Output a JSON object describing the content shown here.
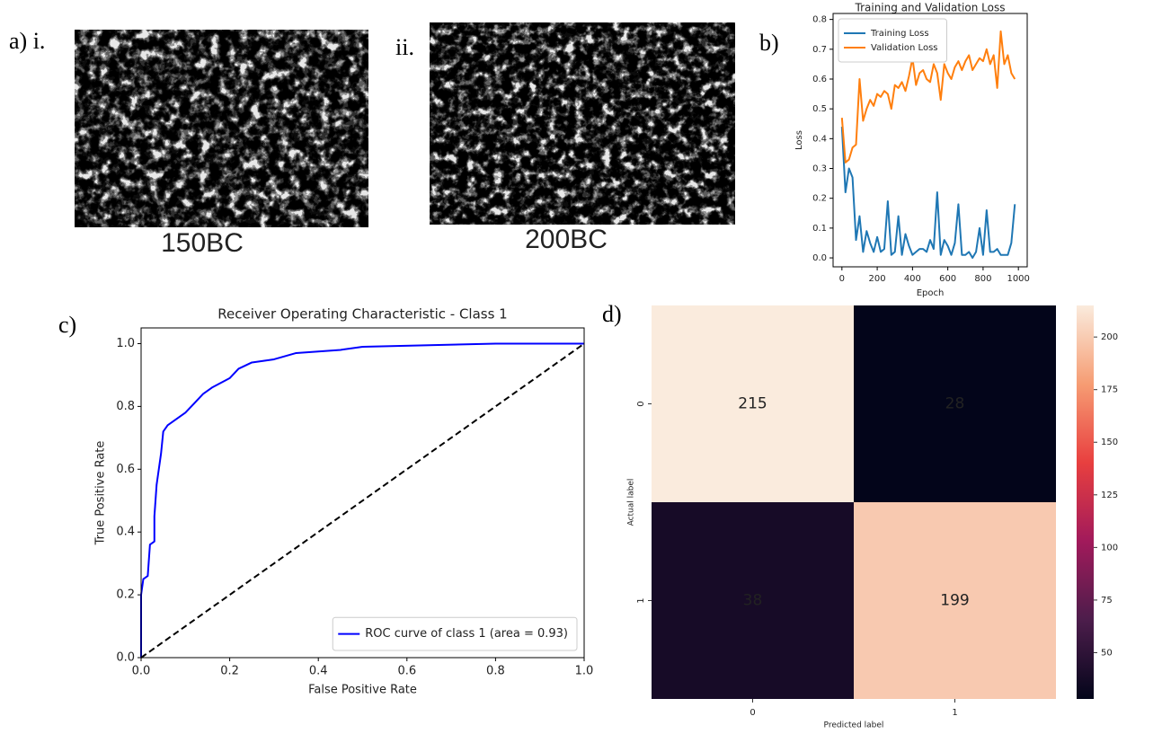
{
  "figure": {
    "panels": [
      {
        "label": "a) i.",
        "caption": "150BC"
      },
      {
        "label": "ii.",
        "caption": "200BC"
      }
    ]
  },
  "chart_data": [
    {
      "type": "line",
      "panel_label": "b)",
      "title": "Training and Validation Loss",
      "xlabel": "Epoch",
      "ylabel": "Loss",
      "x": [
        0,
        20,
        40,
        60,
        80,
        100,
        120,
        140,
        160,
        180,
        200,
        220,
        240,
        260,
        280,
        300,
        320,
        340,
        360,
        380,
        400,
        420,
        440,
        460,
        480,
        500,
        520,
        540,
        560,
        580,
        600,
        620,
        640,
        660,
        680,
        700,
        720,
        740,
        760,
        780,
        800,
        820,
        840,
        860,
        880,
        900,
        920,
        940,
        960,
        980
      ],
      "series": [
        {
          "name": "Training Loss",
          "color": "#1f77b4",
          "values": [
            0.44,
            0.22,
            0.3,
            0.27,
            0.06,
            0.14,
            0.02,
            0.09,
            0.05,
            0.02,
            0.07,
            0.02,
            0.03,
            0.19,
            0.01,
            0.02,
            0.14,
            0.01,
            0.08,
            0.04,
            0.01,
            0.02,
            0.03,
            0.03,
            0.02,
            0.06,
            0.03,
            0.22,
            0.01,
            0.06,
            0.04,
            0.01,
            0.05,
            0.18,
            0.01,
            0.01,
            0.02,
            0.0,
            0.02,
            0.1,
            0.01,
            0.16,
            0.02,
            0.02,
            0.03,
            0.01,
            0.01,
            0.01,
            0.05,
            0.18
          ]
        },
        {
          "name": "Validation Loss",
          "color": "#ff7f0e",
          "values": [
            0.47,
            0.32,
            0.33,
            0.37,
            0.38,
            0.6,
            0.46,
            0.5,
            0.53,
            0.51,
            0.55,
            0.54,
            0.56,
            0.55,
            0.5,
            0.58,
            0.57,
            0.59,
            0.56,
            0.61,
            0.67,
            0.58,
            0.62,
            0.63,
            0.6,
            0.59,
            0.65,
            0.62,
            0.53,
            0.65,
            0.62,
            0.6,
            0.64,
            0.66,
            0.63,
            0.66,
            0.68,
            0.63,
            0.65,
            0.67,
            0.66,
            0.7,
            0.65,
            0.68,
            0.57,
            0.76,
            0.65,
            0.68,
            0.62,
            0.6
          ]
        }
      ],
      "xlim": [
        -50,
        1050
      ],
      "xticks": [
        0,
        200,
        400,
        600,
        800,
        1000
      ],
      "ylim": [
        -0.03,
        0.82
      ],
      "yticks": [
        {
          "value": 0,
          "label": "0.0"
        },
        0.1,
        0.2,
        0.3,
        0.4,
        0.5,
        0.6,
        0.7,
        0.8
      ],
      "legend": "upper left"
    },
    {
      "type": "line",
      "panel_label": "c)",
      "title": "Receiver Operating Characteristic - Class 1",
      "xlabel": "False Positive Rate",
      "ylabel": "True Positive Rate",
      "series": [
        {
          "name": "ROC curve of class 1 (area = 0.93)",
          "color": "#0000ff",
          "x": [
            0,
            0,
            0.005,
            0.015,
            0.02,
            0.03,
            0.03,
            0.035,
            0.04,
            0.045,
            0.05,
            0.06,
            0.08,
            0.1,
            0.12,
            0.14,
            0.16,
            0.2,
            0.22,
            0.25,
            0.3,
            0.35,
            0.45,
            0.5,
            0.65,
            0.8,
            1
          ],
          "values": [
            0,
            0.2,
            0.25,
            0.26,
            0.36,
            0.37,
            0.45,
            0.55,
            0.6,
            0.65,
            0.72,
            0.74,
            0.76,
            0.78,
            0.81,
            0.84,
            0.86,
            0.89,
            0.92,
            0.94,
            0.95,
            0.97,
            0.98,
            0.99,
            0.995,
            1,
            1
          ]
        },
        {
          "color": "#000000",
          "dash": true,
          "x": [
            0,
            1
          ],
          "values": [
            0,
            1
          ]
        }
      ],
      "xlim": [
        0,
        1
      ],
      "xticks": [
        {
          "value": 0,
          "label": "0.0"
        },
        0.2,
        0.4,
        0.6,
        0.8,
        {
          "value": 1,
          "label": "1.0"
        }
      ],
      "ylim": [
        0,
        1.05
      ],
      "yticks": [
        {
          "value": 0,
          "label": "0.0"
        },
        0.2,
        0.4,
        0.6,
        0.8,
        {
          "value": 1,
          "label": "1.0"
        }
      ],
      "legend": "lower right"
    },
    {
      "type": "heatmap",
      "panel_label": "d)",
      "xlabel": "Predicted label",
      "ylabel": "Actual label",
      "categories": [
        "0",
        "1"
      ],
      "rows": [
        "0",
        "1"
      ],
      "values": [
        [
          215,
          28
        ],
        [
          38,
          199
        ]
      ],
      "colormap": "rocket",
      "clim": [
        28,
        215
      ],
      "cticks": [
        50,
        75,
        100,
        125,
        150,
        175,
        200
      ]
    }
  ]
}
